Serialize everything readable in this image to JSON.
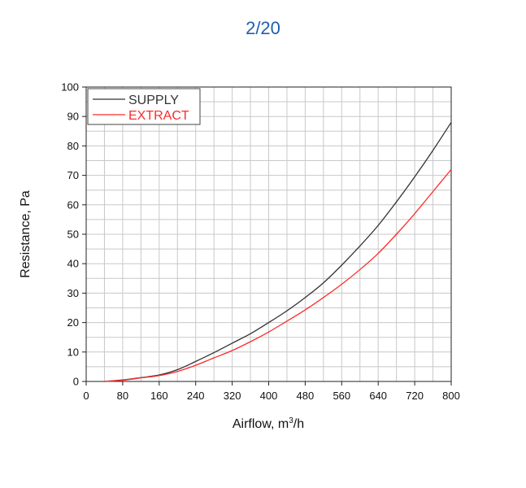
{
  "header": {
    "page_counter": "2/20"
  },
  "colors": {
    "accent": "#1f5fae",
    "supply": "#333333",
    "extract": "#ff2a2a",
    "grid": "#c8c8c8"
  },
  "chart_data": {
    "type": "line",
    "title": "",
    "xlabel": "Airflow, m",
    "xlabel_sup": "3",
    "xlabel_suffix": "/h",
    "ylabel": "Resistance, Pa",
    "xlim": [
      0,
      800
    ],
    "ylim": [
      0,
      100
    ],
    "x_ticks": [
      0,
      80,
      160,
      240,
      320,
      400,
      480,
      560,
      640,
      720,
      800
    ],
    "y_ticks": [
      0,
      10,
      20,
      30,
      40,
      50,
      60,
      70,
      80,
      90,
      100
    ],
    "grid": true,
    "legend_position": "top-left",
    "series": [
      {
        "name": "SUPPLY",
        "color": "#333333",
        "x": [
          40,
          80,
          120,
          160,
          200,
          240,
          280,
          320,
          360,
          400,
          440,
          480,
          520,
          560,
          600,
          640,
          680,
          720,
          760,
          800
        ],
        "y": [
          0,
          0.5,
          1.3,
          2.2,
          4.0,
          6.8,
          9.8,
          13.0,
          16.2,
          20.0,
          24.0,
          28.5,
          33.5,
          39.5,
          46.0,
          53.0,
          61.0,
          69.5,
          78.5,
          88.0
        ]
      },
      {
        "name": "EXTRACT",
        "color": "#ff2a2a",
        "x": [
          40,
          80,
          120,
          160,
          200,
          240,
          280,
          320,
          360,
          400,
          440,
          480,
          520,
          560,
          600,
          640,
          680,
          720,
          760,
          800
        ],
        "y": [
          0,
          0.4,
          1.2,
          2.0,
          3.4,
          5.5,
          8.0,
          10.5,
          13.5,
          16.8,
          20.5,
          24.3,
          28.5,
          33.0,
          38.0,
          43.5,
          50.0,
          57.0,
          64.5,
          72.0
        ]
      }
    ]
  }
}
